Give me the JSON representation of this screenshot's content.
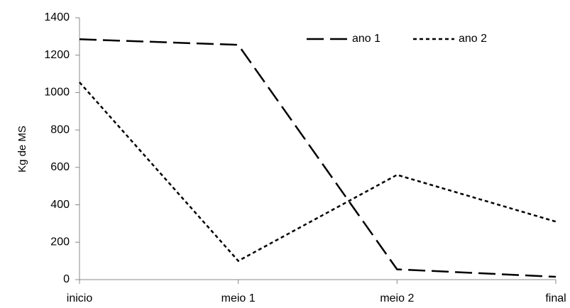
{
  "chart_data": {
    "type": "line",
    "y_label": "Kg de MS",
    "categories": [
      "inicio",
      "meio 1",
      "meio 2",
      "final"
    ],
    "series": [
      {
        "name": "ano 1",
        "color": "#000000",
        "linestyle": "long-dash",
        "values": [
          1285,
          1255,
          55,
          15
        ]
      },
      {
        "name": "ano 2",
        "color": "#000000",
        "linestyle": "short-dash",
        "values": [
          1055,
          100,
          560,
          310
        ]
      }
    ],
    "ylim": [
      0,
      1400
    ],
    "yticks": [
      0,
      200,
      400,
      600,
      800,
      1000,
      1200,
      1400
    ],
    "grid": false,
    "legend": "upper right"
  }
}
